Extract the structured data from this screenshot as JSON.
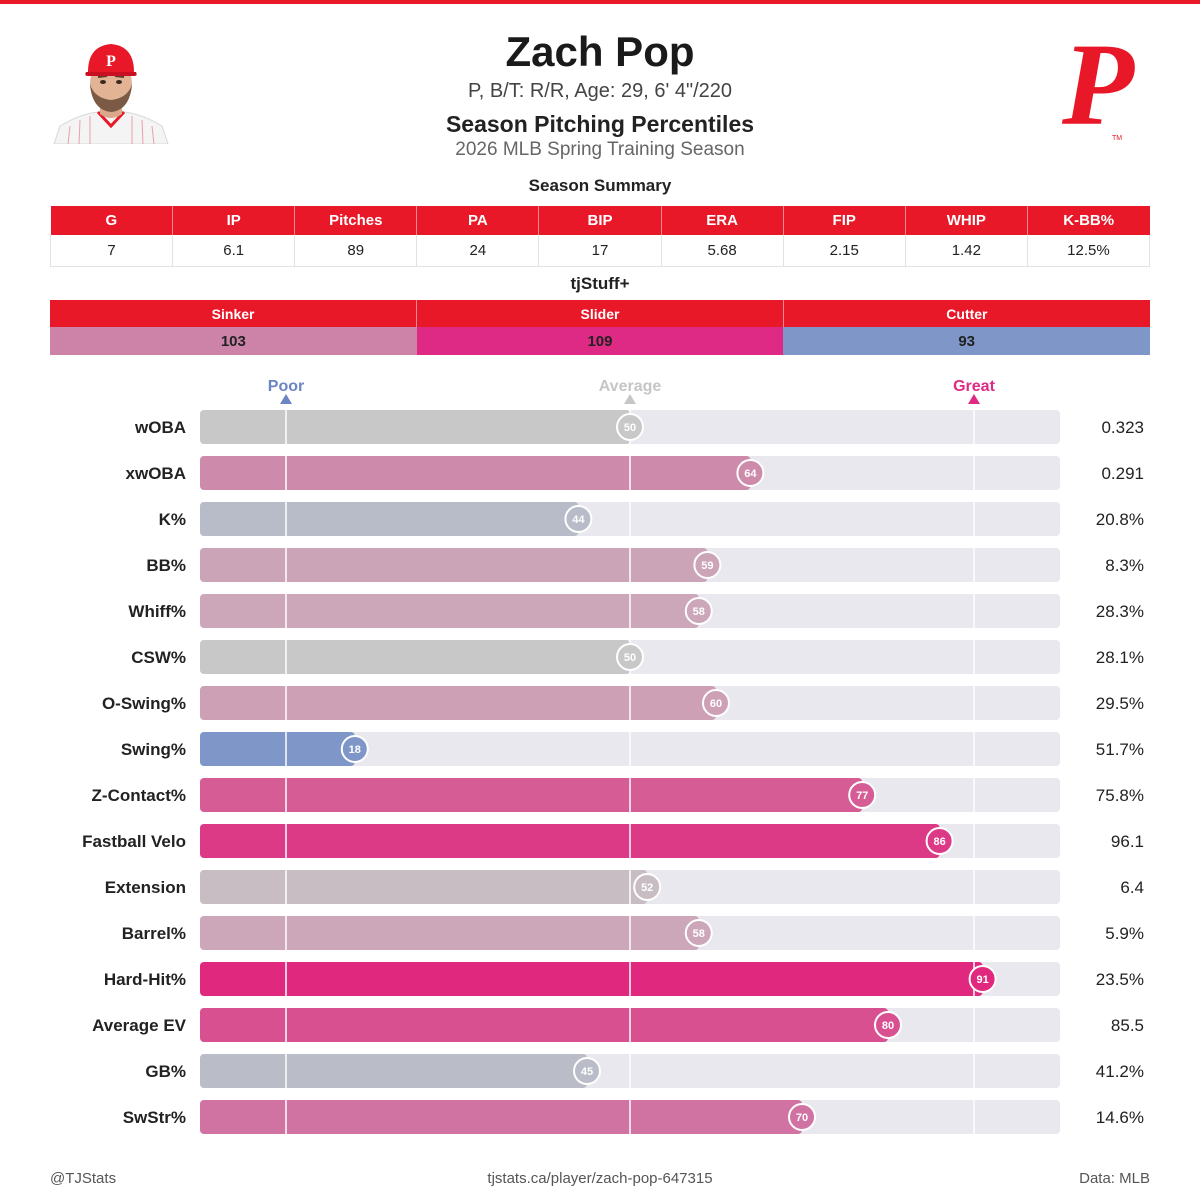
{
  "header": {
    "name": "Zach Pop",
    "bio": "P, B/T: R/R, Age: 29, 6' 4\"/220",
    "subtitle": "Season Pitching Percentiles",
    "season": "2026 MLB Spring Training Season",
    "logo_letter": "P",
    "logo_tm": "TM"
  },
  "summary": {
    "title": "Season Summary",
    "columns": [
      "G",
      "IP",
      "Pitches",
      "PA",
      "BIP",
      "ERA",
      "FIP",
      "WHIP",
      "K-BB%"
    ],
    "values": [
      "7",
      "6.1",
      "89",
      "24",
      "17",
      "5.68",
      "2.15",
      "1.42",
      "12.5%"
    ]
  },
  "tjstuff": {
    "title": "tjStuff+",
    "pitches": [
      {
        "name": "Sinker",
        "value": "103",
        "color": "#cd83a8"
      },
      {
        "name": "Slider",
        "value": "109",
        "color": "#de2a84"
      },
      {
        "name": "Cutter",
        "value": "93",
        "color": "#7e96c8"
      }
    ]
  },
  "chart_data": {
    "type": "bar",
    "orientation": "horizontal",
    "xlim": [
      0,
      100
    ],
    "reference_labels": [
      {
        "label": "Poor",
        "percentile": 10,
        "color": "#6b86c2"
      },
      {
        "label": "Average",
        "percentile": 50,
        "color": "#c6c6c6"
      },
      {
        "label": "Great",
        "percentile": 90,
        "color": "#de2a84"
      }
    ],
    "rows": [
      {
        "metric": "wOBA",
        "percentile": 50,
        "value": "0.323",
        "color": "#c8c8c8"
      },
      {
        "metric": "xwOBA",
        "percentile": 64,
        "value": "0.291",
        "color": "#cd8aaa"
      },
      {
        "metric": "K%",
        "percentile": 44,
        "value": "20.8%",
        "color": "#b8bcc8"
      },
      {
        "metric": "BB%",
        "percentile": 59,
        "value": "8.3%",
        "color": "#cca4b8"
      },
      {
        "metric": "Whiff%",
        "percentile": 58,
        "value": "28.3%",
        "color": "#cca6b9"
      },
      {
        "metric": "CSW%",
        "percentile": 50,
        "value": "28.1%",
        "color": "#c8c8c8"
      },
      {
        "metric": "O-Swing%",
        "percentile": 60,
        "value": "29.5%",
        "color": "#cda0b6"
      },
      {
        "metric": "Swing%",
        "percentile": 18,
        "value": "51.7%",
        "color": "#7e96c8"
      },
      {
        "metric": "Z-Contact%",
        "percentile": 77,
        "value": "75.8%",
        "color": "#d65c95"
      },
      {
        "metric": "Fastball Velo",
        "percentile": 86,
        "value": "96.1",
        "color": "#dc3986"
      },
      {
        "metric": "Extension",
        "percentile": 52,
        "value": "6.4",
        "color": "#c8bdc3"
      },
      {
        "metric": "Barrel%",
        "percentile": 58,
        "value": "5.9%",
        "color": "#cca6b9"
      },
      {
        "metric": "Hard-Hit%",
        "percentile": 91,
        "value": "23.5%",
        "color": "#e0287f"
      },
      {
        "metric": "Average EV",
        "percentile": 80,
        "value": "85.5",
        "color": "#d8508f"
      },
      {
        "metric": "GB%",
        "percentile": 45,
        "value": "41.2%",
        "color": "#babdc8"
      },
      {
        "metric": "SwStr%",
        "percentile": 70,
        "value": "14.6%",
        "color": "#d073a3"
      }
    ]
  },
  "footer": {
    "left": "@TJStats",
    "center": "tjstats.ca/player/zach-pop-647315",
    "right": "Data: MLB"
  },
  "colors": {
    "accent": "#e81828",
    "track": "#e8e8ee"
  }
}
